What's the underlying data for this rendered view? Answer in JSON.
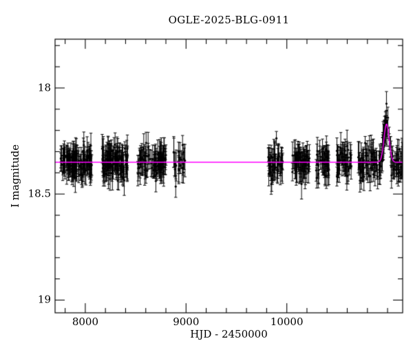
{
  "chart_data": {
    "type": "scatter",
    "title": "OGLE-2025-BLG-0911",
    "xlabel": "HJD - 2450000",
    "ylabel": "I magnitude",
    "x_range": [
      7700,
      11150
    ],
    "y_range": [
      17.77,
      19.06
    ],
    "x_major_ticks": [
      8000,
      9000,
      10000
    ],
    "x_tick_labels": [
      "8000",
      "9000",
      "10000"
    ],
    "x_minor_step": 200,
    "y_major_ticks": [
      18,
      18.5,
      19
    ],
    "y_tick_labels": [
      "18",
      "18.5",
      "19"
    ],
    "y_minor_step": 0.1,
    "y_axis_inverted": true,
    "grid": false,
    "point_color": "#000000",
    "baseline_mag": 18.35,
    "model": {
      "shape": "microlensing-peak",
      "color": "#ff00ff",
      "t0": 10990,
      "sigma": 26,
      "amplitude": 0.18
    },
    "seasons": [
      {
        "start": 7755,
        "end": 8065,
        "n": 130,
        "scatter": 0.034,
        "err": 0.048
      },
      {
        "start": 8165,
        "end": 8420,
        "n": 115,
        "scatter": 0.034,
        "err": 0.048
      },
      {
        "start": 8520,
        "end": 8800,
        "n": 95,
        "scatter": 0.033,
        "err": 0.048
      },
      {
        "start": 8875,
        "end": 8990,
        "n": 22,
        "scatter": 0.04,
        "err": 0.055
      },
      {
        "start": 9815,
        "end": 9960,
        "n": 48,
        "scatter": 0.036,
        "err": 0.05
      },
      {
        "start": 10055,
        "end": 10230,
        "n": 55,
        "scatter": 0.036,
        "err": 0.05
      },
      {
        "start": 10285,
        "end": 10420,
        "n": 40,
        "scatter": 0.034,
        "err": 0.05
      },
      {
        "start": 10490,
        "end": 10640,
        "n": 45,
        "scatter": 0.036,
        "err": 0.05
      },
      {
        "start": 10700,
        "end": 10930,
        "n": 60,
        "scatter": 0.036,
        "err": 0.05
      },
      {
        "start": 10930,
        "end": 11060,
        "n": 42,
        "scatter": 0.03,
        "err": 0.045
      },
      {
        "start": 11060,
        "end": 11148,
        "n": 26,
        "scatter": 0.036,
        "err": 0.05
      }
    ]
  }
}
